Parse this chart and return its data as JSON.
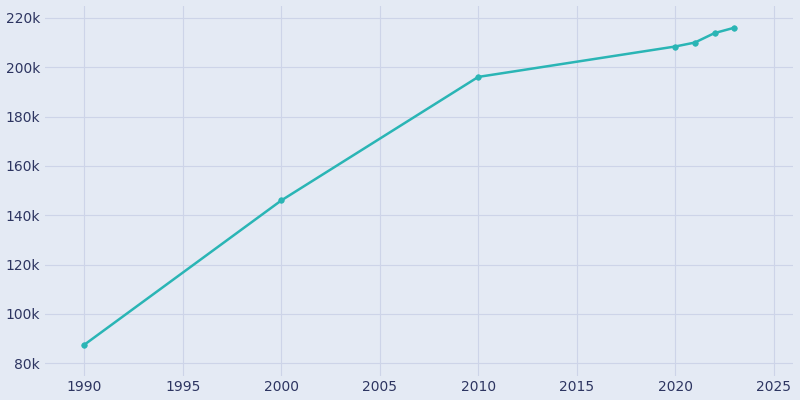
{
  "years": [
    1990,
    2000,
    2010,
    2020,
    2021,
    2022,
    2023
  ],
  "population": [
    87535,
    146000,
    196069,
    208394,
    210000,
    213839,
    216000
  ],
  "line_color": "#2ab5b5",
  "marker_color": "#2ab5b5",
  "background_color": "#e4eaf4",
  "grid_color": "#cdd4e8",
  "text_color": "#2d3561",
  "xlim": [
    1988,
    2026
  ],
  "ylim": [
    75000,
    225000
  ],
  "xticks": [
    1990,
    1995,
    2000,
    2005,
    2010,
    2015,
    2020,
    2025
  ],
  "yticks": [
    80000,
    100000,
    120000,
    140000,
    160000,
    180000,
    200000,
    220000
  ],
  "line_width": 1.8,
  "marker_size": 4,
  "figsize": [
    8.0,
    4.0
  ],
  "dpi": 100
}
